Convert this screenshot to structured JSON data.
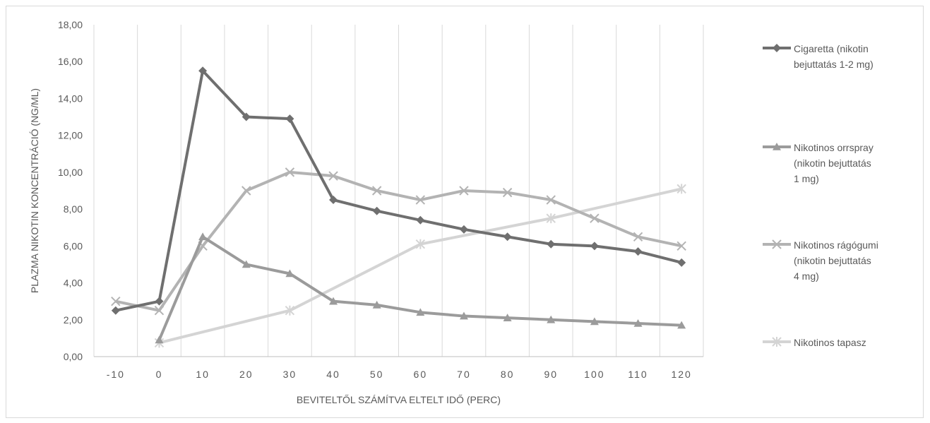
{
  "chart_data": {
    "type": "line",
    "xlabel": "BEVITELTŐL SZÁMÍTVA ELTELT IDŐ (PERC)",
    "ylabel": "PLAZMA NIKOTIN KONCENTRÁCIÓ (NG/ML)",
    "categories": [
      "-10",
      "0",
      "10",
      "20",
      "30",
      "40",
      "50",
      "60",
      "70",
      "80",
      "90",
      "100",
      "110",
      "120"
    ],
    "ylim": [
      0,
      18
    ],
    "yticks": [
      "0,00",
      "2,00",
      "4,00",
      "6,00",
      "8,00",
      "10,00",
      "12,00",
      "14,00",
      "16,00",
      "18,00"
    ],
    "grid": "vertical",
    "legend_position": "right",
    "series": [
      {
        "name": "Cigaretta (nikotin bejuttatás 1-2 mg)",
        "label_lines": [
          "Cigaretta (nikotin",
          "bejuttatás 1-2 mg)"
        ],
        "marker": "diamond",
        "color": "#6f6f6f",
        "points": [
          [
            -10,
            2.5
          ],
          [
            0,
            3.0
          ],
          [
            10,
            15.5
          ],
          [
            20,
            13.0
          ],
          [
            30,
            12.9
          ],
          [
            40,
            8.5
          ],
          [
            50,
            7.9
          ],
          [
            60,
            7.4
          ],
          [
            70,
            6.9
          ],
          [
            80,
            6.5
          ],
          [
            90,
            6.1
          ],
          [
            100,
            6.0
          ],
          [
            110,
            5.7
          ],
          [
            120,
            5.1
          ]
        ]
      },
      {
        "name": "Nikotinos orrspray (nikotin bejuttatás 1 mg)",
        "label_lines": [
          "Nikotinos orrspray",
          "(nikotin bejuttatás",
          "1 mg)"
        ],
        "marker": "triangle",
        "color": "#9b9b9b",
        "points": [
          [
            0,
            0.9
          ],
          [
            10,
            6.5
          ],
          [
            20,
            5.0
          ],
          [
            30,
            4.5
          ],
          [
            40,
            3.0
          ],
          [
            50,
            2.8
          ],
          [
            60,
            2.4
          ],
          [
            70,
            2.2
          ],
          [
            80,
            2.1
          ],
          [
            90,
            2.0
          ],
          [
            100,
            1.9
          ],
          [
            110,
            1.8
          ],
          [
            120,
            1.7
          ]
        ]
      },
      {
        "name": "Nikotinos rágógumi (nikotin bejuttatás 4 mg)",
        "label_lines": [
          "Nikotinos rágógumi",
          "(nikotin bejuttatás",
          "4 mg)"
        ],
        "marker": "x",
        "color": "#b3b3b3",
        "points": [
          [
            -10,
            3.0
          ],
          [
            0,
            2.5
          ],
          [
            10,
            6.0
          ],
          [
            20,
            9.0
          ],
          [
            30,
            10.0
          ],
          [
            40,
            9.8
          ],
          [
            50,
            9.0
          ],
          [
            60,
            8.5
          ],
          [
            70,
            9.0
          ],
          [
            80,
            8.9
          ],
          [
            90,
            8.5
          ],
          [
            100,
            7.5
          ],
          [
            110,
            6.5
          ],
          [
            120,
            6.0
          ]
        ]
      },
      {
        "name": "Nikotinos tapasz",
        "label_lines": [
          "Nikotinos tapasz"
        ],
        "marker": "star",
        "color": "#d4d4d4",
        "points": [
          [
            0,
            0.75
          ],
          [
            30,
            2.5
          ],
          [
            60,
            6.1
          ],
          [
            90,
            7.5
          ],
          [
            120,
            9.1
          ]
        ]
      }
    ]
  }
}
